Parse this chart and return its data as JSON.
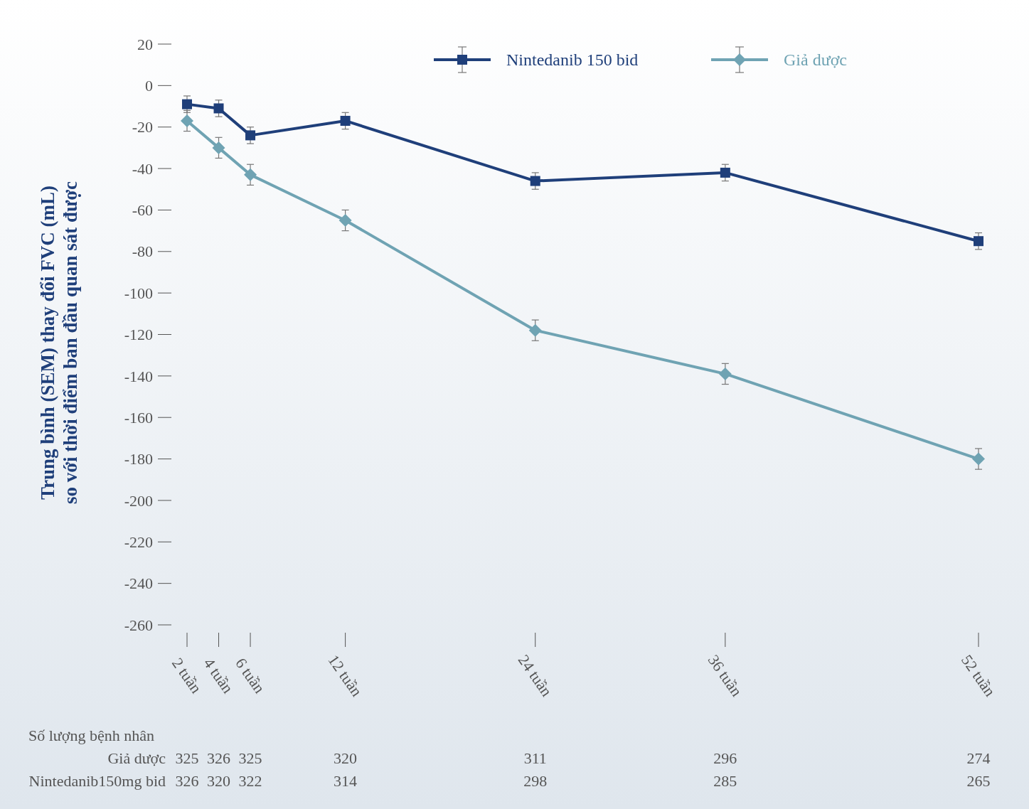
{
  "chart_data": {
    "type": "line",
    "ylabel": "Trung bình (SEM) thay đổi FVC (mL)\nso với thời điểm ban đầu quan sát được",
    "x": [
      2,
      4,
      6,
      12,
      24,
      36,
      52
    ],
    "xlim": [
      2,
      52
    ],
    "xticks": [
      {
        "value": 2,
        "label": "2 tuần"
      },
      {
        "value": 4,
        "label": "4 tuần"
      },
      {
        "value": 6,
        "label": "6 tuần"
      },
      {
        "value": 12,
        "label": "12 tuần"
      },
      {
        "value": 24,
        "label": "24 tuần"
      },
      {
        "value": 36,
        "label": "36 tuần"
      },
      {
        "value": 52,
        "label": "52 tuần"
      }
    ],
    "ylim": [
      -260,
      20
    ],
    "yticks": [
      20,
      0,
      -20,
      -40,
      -60,
      -80,
      -100,
      -120,
      -140,
      -160,
      -180,
      -200,
      -220,
      -240,
      -260
    ],
    "series": [
      {
        "name": "Nintedanib 150 bid",
        "color": "#1f3f7a",
        "marker": "square",
        "values": [
          -9,
          -11,
          -24,
          -17,
          -46,
          -42,
          -75
        ],
        "errors": [
          4,
          4,
          4,
          4,
          4,
          4,
          4
        ]
      },
      {
        "name": "Giả dược",
        "color": "#6fa3b3",
        "marker": "diamond",
        "values": [
          -17,
          -30,
          -43,
          -65,
          -118,
          -139,
          -180
        ],
        "errors": [
          5,
          5,
          5,
          5,
          5,
          5,
          5
        ]
      }
    ],
    "legend": "top right",
    "grid": false,
    "annotations": [
      "Số lượng bệnh nhân",
      "Giả dược",
      "Nintedanib150mg bid",
      "325",
      "326",
      "325",
      "320",
      "311",
      "296",
      "274",
      "326",
      "320",
      "322",
      "314",
      "298",
      "285",
      "265"
    ]
  }
}
